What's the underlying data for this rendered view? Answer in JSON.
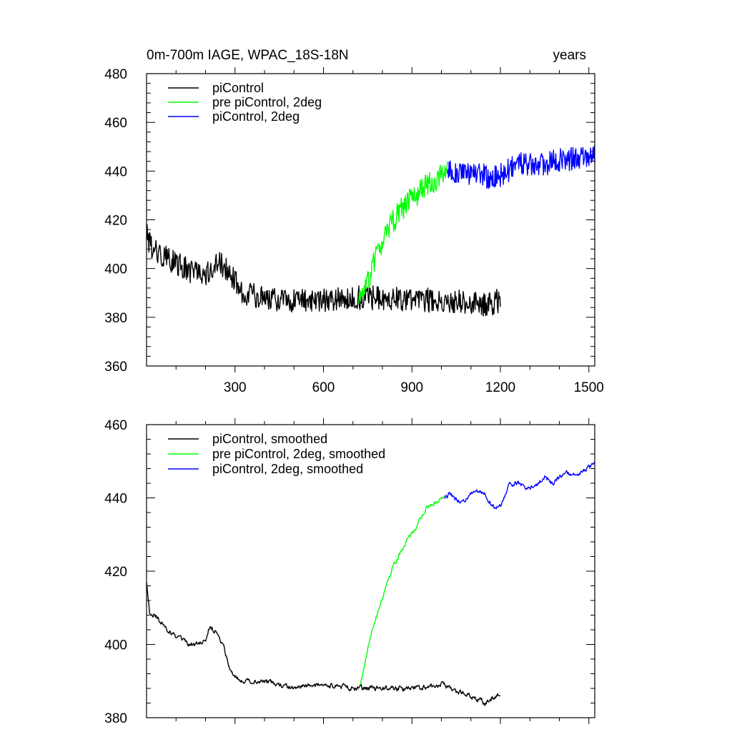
{
  "chart_data": [
    {
      "type": "line",
      "title": "0m-700m IAGE, WPAC_18S-18N",
      "title_right": "years",
      "xlim": [
        0,
        1520
      ],
      "ylim": [
        360,
        480
      ],
      "xticks": [
        300,
        600,
        900,
        1200,
        1500
      ],
      "xtick_labels": [
        "300",
        "600",
        "900",
        "1200",
        "1500"
      ],
      "yticks": [
        360,
        380,
        400,
        420,
        440,
        460,
        480
      ],
      "ytick_labels": [
        "360",
        "380",
        "400",
        "420",
        "440",
        "460",
        "480"
      ],
      "legend_position": "top-left",
      "noise": 5,
      "series": [
        {
          "name": "piControl",
          "color": "#000000",
          "x": [
            0,
            20,
            60,
            100,
            150,
            200,
            240,
            280,
            320,
            400,
            500,
            600,
            700,
            800,
            900,
            1000,
            1100,
            1150,
            1200
          ],
          "y": [
            414,
            408,
            405,
            402,
            399,
            398,
            403,
            399,
            390,
            388,
            387,
            387,
            388,
            388,
            387,
            387,
            386,
            385,
            387
          ]
        },
        {
          "name": "pre piControl, 2deg",
          "color": "#00ff00",
          "x": [
            720,
            740,
            760,
            780,
            800,
            820,
            840,
            860,
            880,
            900,
            930,
            960,
            990,
            1020
          ],
          "y": [
            387,
            392,
            398,
            405,
            411,
            416,
            420,
            424,
            426,
            429,
            432,
            435,
            437,
            440
          ]
        },
        {
          "name": "piControl, 2deg",
          "color": "#0000ff",
          "x": [
            1020,
            1080,
            1120,
            1160,
            1200,
            1260,
            1320,
            1380,
            1440,
            1480,
            1520
          ],
          "y": [
            440,
            439,
            440,
            437,
            438,
            443,
            442,
            444,
            445,
            446,
            448
          ]
        }
      ]
    },
    {
      "type": "line",
      "title": "",
      "xlim": [
        0,
        1520
      ],
      "ylim": [
        380,
        460
      ],
      "xticks": [
        300,
        600,
        900,
        1200,
        1500
      ],
      "xtick_labels": [],
      "yticks": [
        380,
        400,
        420,
        440,
        460
      ],
      "ytick_labels": [
        "380",
        "400",
        "420",
        "440",
        "460"
      ],
      "legend_position": "top-left",
      "noise": 1.4,
      "series": [
        {
          "name": "piControl, smoothed",
          "color": "#000000",
          "x": [
            0,
            10,
            30,
            60,
            100,
            140,
            170,
            200,
            215,
            240,
            260,
            280,
            300,
            340,
            400,
            450,
            500,
            600,
            700,
            800,
            900,
            1000,
            1100,
            1150,
            1200
          ],
          "y": [
            417,
            409,
            408,
            405,
            402,
            400,
            400,
            401,
            405,
            403,
            400,
            394,
            391,
            390,
            390,
            389,
            388,
            389,
            388,
            388,
            388,
            389,
            386,
            384,
            387
          ]
        },
        {
          "name": "pre piControl, 2deg, smoothed",
          "color": "#00ff00",
          "x": [
            725,
            740,
            760,
            780,
            800,
            820,
            840,
            860,
            880,
            900,
            920,
            940,
            960,
            980,
            1000,
            1010
          ],
          "y": [
            389,
            395,
            402,
            408,
            413,
            418,
            422,
            425,
            428,
            430,
            433,
            436,
            438,
            439,
            440,
            441
          ]
        },
        {
          "name": "piControl, 2deg, smoothed",
          "color": "#0000ff",
          "x": [
            1010,
            1030,
            1060,
            1090,
            1120,
            1150,
            1180,
            1200,
            1230,
            1260,
            1290,
            1320,
            1350,
            1380,
            1420,
            1460,
            1500,
            1520
          ],
          "y": [
            440,
            441,
            439,
            440,
            442,
            441,
            437,
            438,
            443,
            444,
            443,
            443,
            446,
            444,
            447,
            446,
            448,
            449
          ]
        }
      ]
    }
  ]
}
